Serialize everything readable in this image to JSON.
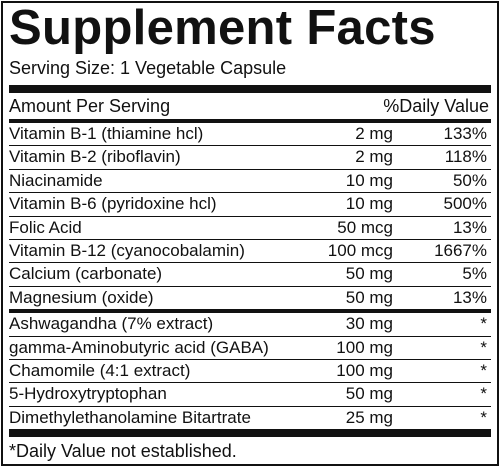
{
  "header": {
    "title": "Supplement Facts",
    "serving_size": "Serving Size: 1 Vegetable Capsule"
  },
  "table": {
    "columns": [
      "Amount Per Serving",
      "%Daily Value"
    ],
    "groups": [
      [
        [
          "Vitamin B-1 (thiamine hcl)",
          "2 mg",
          "133%"
        ],
        [
          "Vitamin B-2 (riboflavin)",
          "2 mg",
          "118%"
        ],
        [
          "Niacinamide",
          "10 mg",
          "50%"
        ],
        [
          "Vitamin B-6 (pyridoxine hcl)",
          "10 mg",
          "500%"
        ],
        [
          "Folic Acid",
          "50 mcg",
          "13%"
        ],
        [
          "Vitamin B-12 (cyanocobalamin)",
          "100 mcg",
          "1667%"
        ],
        [
          "Calcium (carbonate)",
          "50 mg",
          "5%"
        ],
        [
          "Magnesium (oxide)",
          "50 mg",
          "13%"
        ]
      ],
      [
        [
          "Ashwagandha (7% extract)",
          "30 mg",
          "*"
        ],
        [
          "gamma-Aminobutyric acid (GABA)",
          "100 mg",
          "*"
        ],
        [
          "Chamomile (4:1 extract)",
          "100 mg",
          "*"
        ],
        [
          "5-Hydroxytryptophan",
          "50 mg",
          "*"
        ],
        [
          "Dimethylethanolamine Bitartrate",
          "25 mg",
          "*"
        ]
      ]
    ]
  },
  "footnote": "*Daily Value not established."
}
